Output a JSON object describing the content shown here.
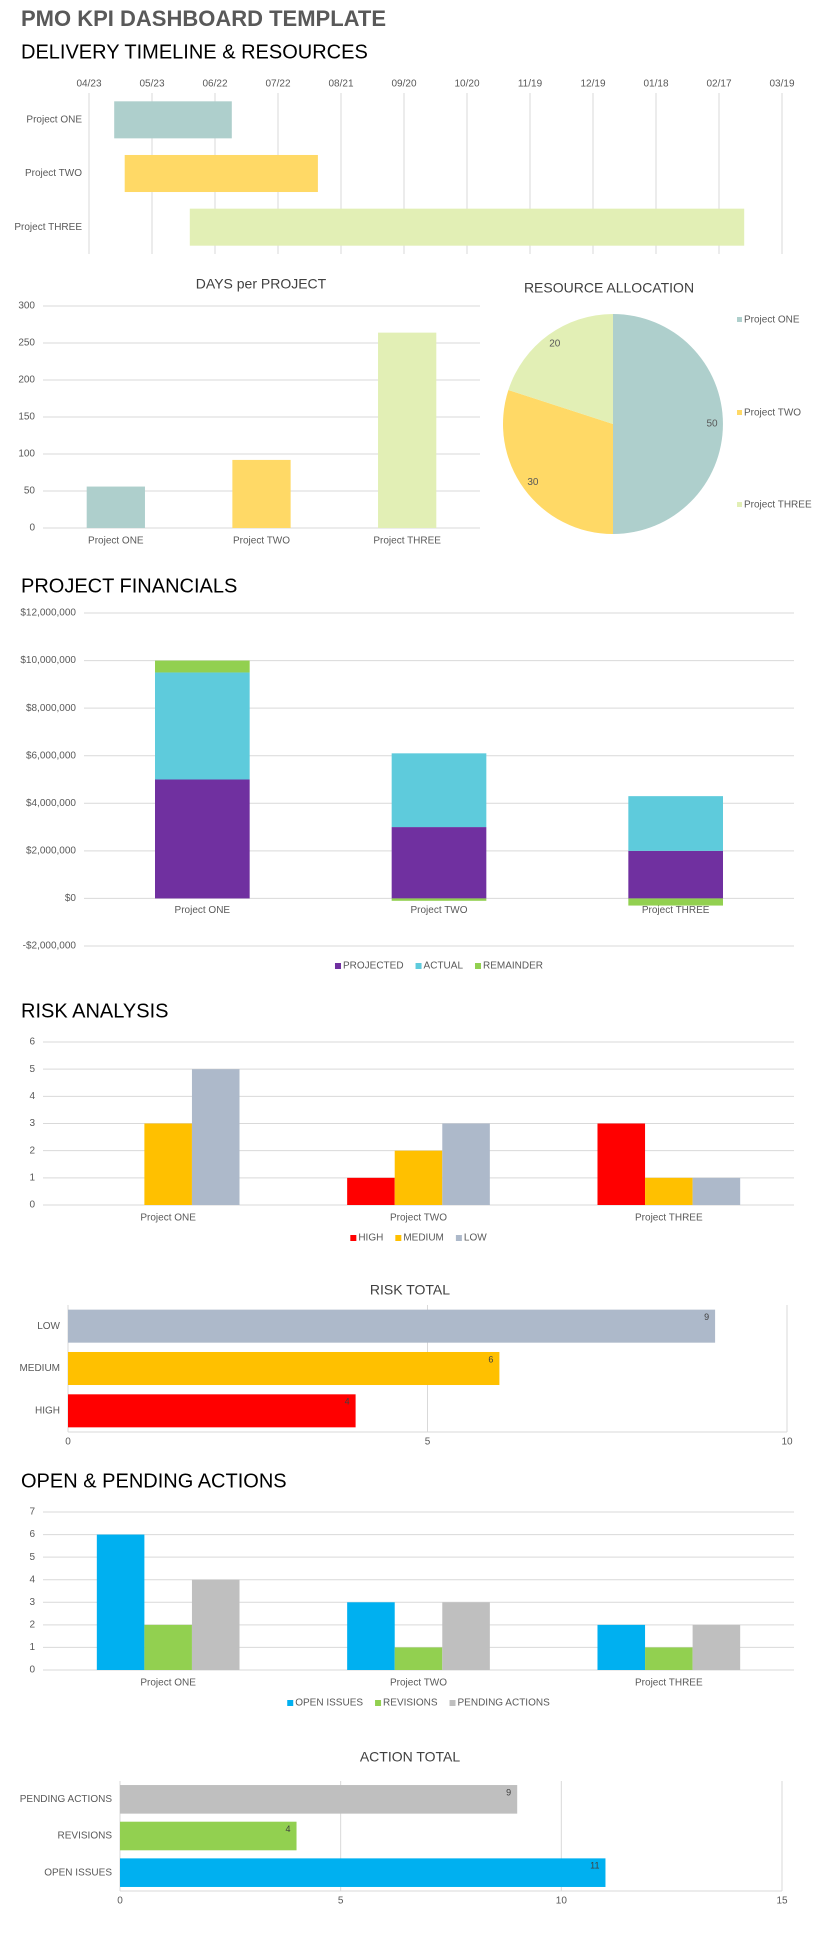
{
  "header": {
    "title": "PMO KPI DASHBOARD TEMPLATE"
  },
  "sections": [
    "DELIVERY TIMELINE & RESOURCES",
    "PROJECT FINANCIALS",
    "RISK ANALYSIS",
    "OPEN & PENDING ACTIONS"
  ],
  "chart_data": [
    {
      "type": "gantt",
      "categories": [
        "Project ONE",
        "Project TWO",
        "Project THREE"
      ],
      "start": [
        12,
        17,
        48
      ],
      "values": [
        56,
        92,
        264
      ],
      "colors": [
        "#aecfcc",
        "#ffd966",
        "#e2efb5"
      ],
      "xlim": [
        0,
        330
      ],
      "xticks": [
        {
          "value": 0,
          "label": "04/23"
        },
        {
          "value": 30,
          "label": "05/23"
        },
        {
          "value": 60,
          "label": "06/22"
        },
        {
          "value": 90,
          "label": "07/22"
        },
        {
          "value": 120,
          "label": "08/21"
        },
        {
          "value": 150,
          "label": "09/20"
        },
        {
          "value": 180,
          "label": "10/20"
        },
        {
          "value": 210,
          "label": "11/19"
        },
        {
          "value": 240,
          "label": "12/19"
        },
        {
          "value": 270,
          "label": "01/18"
        },
        {
          "value": 300,
          "label": "02/17"
        },
        {
          "value": 330,
          "label": "03/19"
        }
      ],
      "grid": true
    },
    {
      "type": "bar",
      "title": "DAYS per PROJECT",
      "categories": [
        "Project ONE",
        "Project TWO",
        "Project THREE"
      ],
      "values": [
        56,
        92,
        264
      ],
      "colors": [
        "#aecfcc",
        "#ffd966",
        "#e2efb5"
      ],
      "ylim": [
        0,
        300
      ],
      "yticks": [
        0,
        50,
        100,
        150,
        200,
        250,
        300
      ],
      "grid": true
    },
    {
      "type": "pie",
      "title": "RESOURCE ALLOCATION",
      "categories": [
        "Project ONE",
        "Project TWO",
        "Project THREE"
      ],
      "values": [
        50,
        30,
        20
      ],
      "colors": [
        "#aecfcc",
        "#ffd966",
        "#e2efb5"
      ],
      "legend": "right"
    },
    {
      "type": "stacked_bar",
      "categories": [
        "Project ONE",
        "Project TWO",
        "Project THREE"
      ],
      "series": [
        {
          "name": "PROJECTED",
          "color": "#7030a0",
          "values": [
            5000000,
            3000000,
            2000000
          ]
        },
        {
          "name": "ACTUAL",
          "color": "#5ecbdc",
          "values": [
            4500000,
            3100000,
            2300000
          ]
        },
        {
          "name": "REMAINDER",
          "color": "#92d050",
          "values": [
            500000,
            -100000,
            -300000
          ]
        }
      ],
      "ylim": [
        -2000000,
        12000000
      ],
      "yticks": [
        {
          "value": -2000000,
          "label": "-$2,000,000"
        },
        {
          "value": 0,
          "label": "$0"
        },
        {
          "value": 2000000,
          "label": "$2,000,000"
        },
        {
          "value": 4000000,
          "label": "$4,000,000"
        },
        {
          "value": 6000000,
          "label": "$6,000,000"
        },
        {
          "value": 8000000,
          "label": "$8,000,000"
        },
        {
          "value": 10000000,
          "label": "$10,000,000"
        },
        {
          "value": 12000000,
          "label": "$12,000,000"
        }
      ],
      "grid": true,
      "legend": "bottom"
    },
    {
      "type": "grouped_bar",
      "categories": [
        "Project ONE",
        "Project TWO",
        "Project THREE"
      ],
      "series": [
        {
          "name": "HIGH",
          "color": "#ff0000",
          "values": [
            0,
            1,
            3
          ]
        },
        {
          "name": "MEDIUM",
          "color": "#ffc000",
          "values": [
            3,
            2,
            1
          ]
        },
        {
          "name": "LOW",
          "color": "#adb9ca",
          "values": [
            5,
            3,
            1
          ]
        }
      ],
      "ylim": [
        0,
        6
      ],
      "yticks": [
        0,
        1,
        2,
        3,
        4,
        5,
        6
      ],
      "grid": true,
      "legend": "bottom"
    },
    {
      "type": "hbar",
      "title": "RISK TOTAL",
      "categories": [
        "LOW",
        "MEDIUM",
        "HIGH"
      ],
      "values": [
        9,
        6,
        4
      ],
      "colors": [
        "#adb9ca",
        "#ffc000",
        "#ff0000"
      ],
      "xlim": [
        0,
        10
      ],
      "xticks": [
        0,
        5,
        10
      ],
      "grid": true
    },
    {
      "type": "grouped_bar",
      "categories": [
        "Project ONE",
        "Project TWO",
        "Project THREE"
      ],
      "series": [
        {
          "name": "OPEN ISSUES",
          "color": "#00b0f0",
          "values": [
            6,
            3,
            2
          ]
        },
        {
          "name": "REVISIONS",
          "color": "#92d050",
          "values": [
            2,
            1,
            1
          ]
        },
        {
          "name": "PENDING ACTIONS",
          "color": "#bfbfbf",
          "values": [
            4,
            3,
            2
          ]
        }
      ],
      "ylim": [
        0,
        7
      ],
      "yticks": [
        0,
        1,
        2,
        3,
        4,
        5,
        6,
        7
      ],
      "grid": true,
      "legend": "bottom"
    },
    {
      "type": "hbar",
      "title": "ACTION TOTAL",
      "categories": [
        "PENDING ACTIONS",
        "REVISIONS",
        "OPEN ISSUES"
      ],
      "values": [
        9,
        4,
        11
      ],
      "colors": [
        "#bfbfbf",
        "#92d050",
        "#00b0f0"
      ],
      "xlim": [
        0,
        15
      ],
      "xticks": [
        0,
        5,
        10,
        15
      ],
      "grid": true
    }
  ]
}
